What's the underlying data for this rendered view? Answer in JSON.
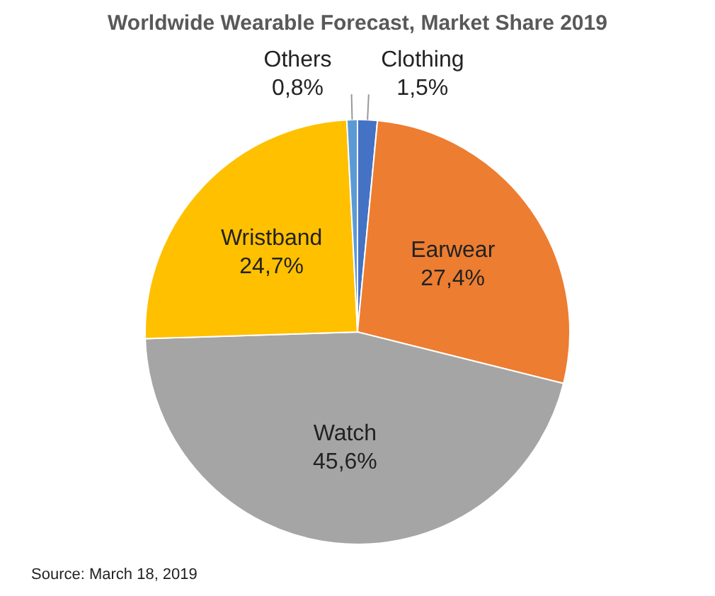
{
  "chart_data": {
    "type": "pie",
    "title": "Worldwide Wearable Forecast, Market Share 2019",
    "categories": [
      "Clothing",
      "Earwear",
      "Watch",
      "Wristband",
      "Others"
    ],
    "values": [
      1.5,
      27.4,
      45.6,
      24.7,
      0.8
    ],
    "colors": [
      "#4472c4",
      "#ed7d31",
      "#a5a5a5",
      "#ffc000",
      "#5b9bd5"
    ],
    "value_labels": [
      "1,5%",
      "27,4%",
      "45,6%",
      "24,7%",
      "0,8%"
    ],
    "legend": false,
    "annotations": [
      "Source: March 18, 2019"
    ]
  }
}
